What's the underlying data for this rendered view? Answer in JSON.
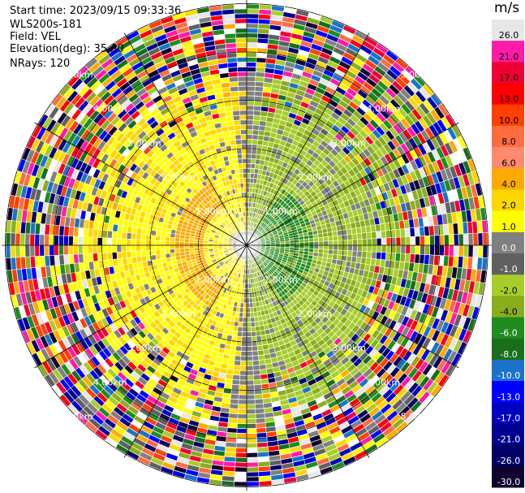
{
  "info": {
    "start_time": "Start time: 2023/09/15 09:33:36",
    "instrument": "WLS200s-181",
    "field": "Field: VEL",
    "elevation": "Elevation(deg): 35.30",
    "nrays": "NRays: 120"
  },
  "chart_data": {
    "type": "heatmap",
    "projection": "polar-ppi",
    "field": "VEL",
    "units": "m/s",
    "n_rays": 120,
    "elevation_deg": 35.3,
    "range_rings_km": [
      1.0,
      2.0,
      3.0,
      4.0,
      5.0
    ],
    "range_ring_labels": [
      "1.00km",
      "2.00km",
      "3.00km",
      "4.00km",
      "5.00km"
    ],
    "max_range_km": 5.0,
    "colorbar": {
      "title": "m/s",
      "levels": [
        26.0,
        21.0,
        17.0,
        13.0,
        10.0,
        8.0,
        6.0,
        4.0,
        2.0,
        1.0,
        0.0,
        -1.0,
        -2.0,
        -4.0,
        -6.0,
        -8.0,
        -10.0,
        -13.0,
        -17.0,
        -21.0,
        -26.0,
        -30.0
      ],
      "level_labels": [
        "26.0",
        "21.0",
        "17.0",
        "13.0",
        "10.0",
        "8.0",
        "6.0",
        "4.0",
        "2.0",
        "1.0",
        "0.0",
        "-1.0",
        "-2.0",
        "-4.0",
        "-6.0",
        "-8.0",
        "-10.0",
        "-13.0",
        "-17.0",
        "-21.0",
        "-26.0",
        "-30.0"
      ],
      "colors": [
        "#e7e7e7",
        "#ff1aa8",
        "#ee0033",
        "#ff0000",
        "#ff4000",
        "#ff6c40",
        "#ff8a70",
        "#ffaa00",
        "#ffd700",
        "#ffff00",
        "#808080",
        "#606060",
        "#a7cd2b",
        "#8aad1e",
        "#1e8c1e",
        "#1a6e1a",
        "#1a73c9",
        "#0000ff",
        "#0000c0",
        "#000090",
        "#000066",
        "#100030"
      ]
    }
  }
}
